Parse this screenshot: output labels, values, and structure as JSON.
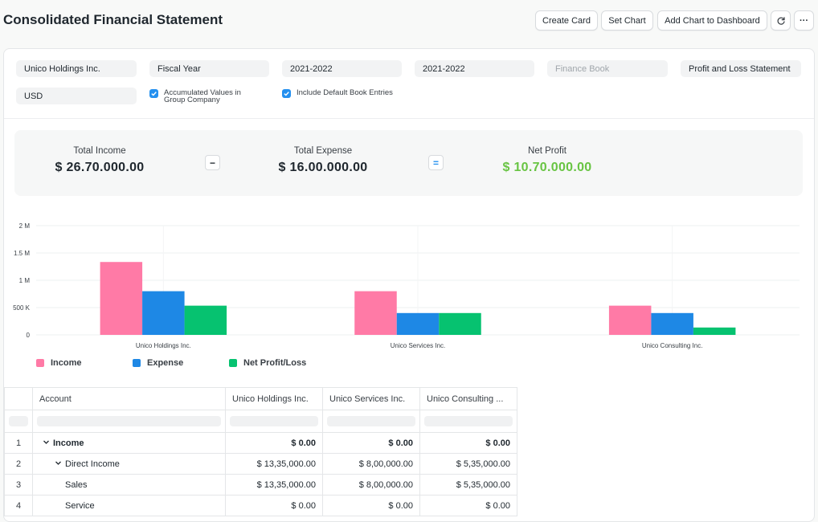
{
  "header": {
    "title": "Consolidated Financial Statement",
    "create_card": "Create Card",
    "set_chart": "Set Chart",
    "add_to_dashboard": "Add Chart to Dashboard",
    "refresh_icon": "refresh-icon",
    "more_icon": "more-icon",
    "more_label": "···"
  },
  "filters": {
    "company": "Unico Holdings Inc.",
    "period": "Fiscal Year",
    "from_year": "2021-2022",
    "to_year": "2021-2022",
    "finance_book_placeholder": "Finance Book",
    "report": "Profit and Loss Statement",
    "currency": "USD",
    "accumulated_label": "Accumulated Values in Group Company",
    "include_default_label": "Include Default Book Entries"
  },
  "summary": {
    "income_label": "Total Income",
    "income_value": "$ 26.70.000.00",
    "minus": "−",
    "expense_label": "Total Expense",
    "expense_value": "$ 16.00.000.00",
    "equals": "=",
    "profit_label": "Net Profit",
    "profit_value": "$ 10.70.000.00",
    "profit_color": "#68c443"
  },
  "chart_data": {
    "type": "bar",
    "categories": [
      "Unico Holdings Inc.",
      "Unico Services Inc.",
      "Unico Consulting Inc."
    ],
    "series": [
      {
        "name": "Income",
        "color": "#ff7aa6",
        "values": [
          1335000,
          800000,
          535000
        ]
      },
      {
        "name": "Expense",
        "color": "#1e88e5",
        "values": [
          800000,
          400000,
          400000
        ]
      },
      {
        "name": "Net Profit/Loss",
        "color": "#06c270",
        "values": [
          535000,
          400000,
          135000
        ]
      }
    ],
    "yticks": [
      "0",
      "500 K",
      "1 M",
      "1.5 M",
      "2 M"
    ],
    "ylim": [
      0,
      2000000
    ],
    "grid": true,
    "legend": "bottom-left"
  },
  "table": {
    "columns": [
      "Account",
      "Unico Holdings Inc.",
      "Unico Services Inc.",
      "Unico Consulting ..."
    ],
    "rows": [
      {
        "idx": "1",
        "account": "Income",
        "c1": "$ 0.00",
        "c2": "$ 0.00",
        "c3": "$ 0.00"
      },
      {
        "idx": "2",
        "account": "Direct Income",
        "c1": "$ 13,35,000.00",
        "c2": "$ 8,00,000.00",
        "c3": "$ 5,35,000.00"
      },
      {
        "idx": "3",
        "account": "Sales",
        "c1": "$ 13,35,000.00",
        "c2": "$ 8,00,000.00",
        "c3": "$ 5,35,000.00"
      },
      {
        "idx": "4",
        "account": "Service",
        "c1": "$ 0.00",
        "c2": "$ 0.00",
        "c3": "$ 0.00"
      }
    ]
  }
}
